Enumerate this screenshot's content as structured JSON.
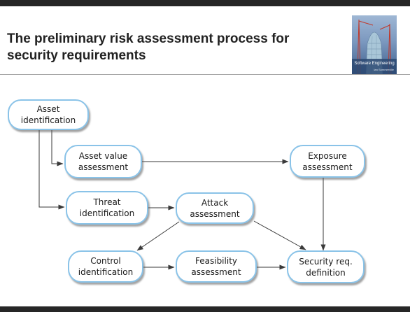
{
  "slide": {
    "title": "The preliminary risk assessment process for security requirements"
  },
  "book_cover": {
    "title": "Software Engineering",
    "author": "Ian Sommerville"
  },
  "nodes": {
    "asset_identification": "Asset identification",
    "asset_value_assessment": "Asset value assessment",
    "exposure_assessment": "Exposure assessment",
    "threat_identification": "Threat identification",
    "attack_assessment": "Attack assessment",
    "control_identification": "Control identification",
    "feasibility_assessment": "Feasibility assessment",
    "security_req_definition": "Security req. definition"
  },
  "colors": {
    "node_border": "#8ac3e8",
    "arrow": "#3a3a3a",
    "frame_bar": "#262626"
  }
}
